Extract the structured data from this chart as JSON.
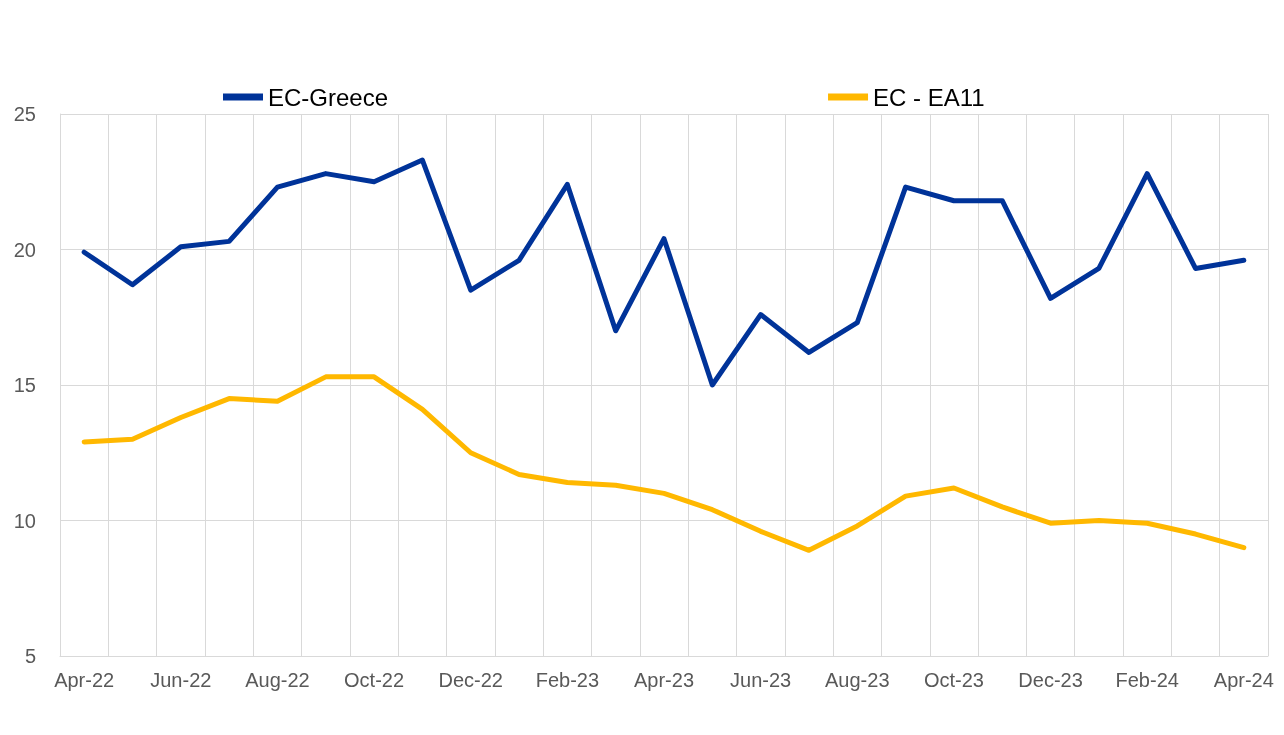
{
  "chart_data": {
    "type": "line",
    "categories": [
      "Apr-22",
      null,
      "Jun-22",
      null,
      "Aug-22",
      null,
      "Oct-22",
      null,
      "Dec-22",
      null,
      "Feb-23",
      null,
      "Apr-23",
      null,
      "Jun-23",
      null,
      "Aug-23",
      null,
      "Oct-23",
      null,
      "Dec-23",
      null,
      "Feb-24",
      null,
      "Apr-24"
    ],
    "series": [
      {
        "name": "EC-Greece",
        "color": "#003399",
        "values": [
          19.9,
          18.7,
          20.1,
          20.3,
          22.3,
          22.8,
          22.5,
          23.3,
          18.5,
          19.6,
          22.4,
          17.0,
          20.4,
          15.0,
          17.6,
          16.2,
          17.3,
          22.3,
          21.8,
          21.8,
          18.2,
          19.3,
          22.8,
          19.3,
          19.6
        ]
      },
      {
        "name": "EC - EA11",
        "color": "#ffb800",
        "values": [
          12.9,
          13.0,
          13.8,
          14.5,
          14.4,
          15.3,
          15.3,
          14.1,
          12.5,
          11.7,
          11.4,
          11.3,
          11.0,
          10.4,
          9.6,
          8.9,
          9.8,
          10.9,
          11.2,
          10.5,
          9.9,
          10.0,
          9.9,
          9.5,
          9.0
        ]
      }
    ],
    "ylim": [
      5,
      25
    ],
    "yticks": [
      5,
      10,
      15,
      20,
      25
    ],
    "grid": true,
    "legend": "top",
    "marker": "none",
    "line_style": "solid"
  }
}
